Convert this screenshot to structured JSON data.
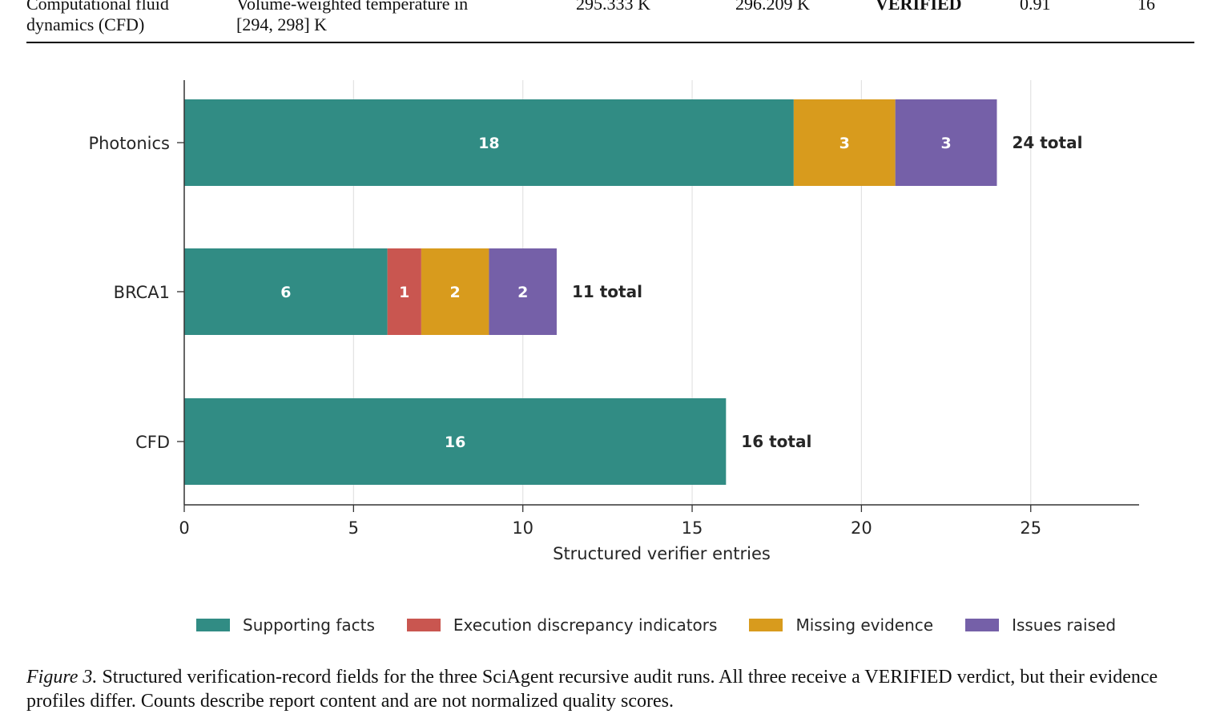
{
  "table_fragment": {
    "row": {
      "domain": [
        "Computational fluid",
        "dynamics (CFD)"
      ],
      "quantity": [
        "Volume-weighted temperature in",
        "[294, 298] K"
      ],
      "value_a": "295.333 K",
      "value_b": "296.209 K",
      "verdict": "VERIFIED",
      "score": "0.91",
      "count": "16"
    }
  },
  "chart_data": {
    "type": "bar",
    "orientation": "horizontal",
    "stacked": true,
    "categories": [
      "Photonics",
      "BRCA1",
      "CFD"
    ],
    "series": [
      {
        "name": "Supporting facts",
        "values": [
          18,
          6,
          16
        ],
        "color": "#318c84"
      },
      {
        "name": "Execution discrepancy indicators",
        "values": [
          0,
          1,
          0
        ],
        "color": "#c95650"
      },
      {
        "name": "Missing evidence",
        "values": [
          3,
          2,
          0
        ],
        "color": "#d89b1d"
      },
      {
        "name": "Issues raised",
        "values": [
          3,
          2,
          0
        ],
        "color": "#7560a8"
      }
    ],
    "totals": [
      "24 total",
      "11 total",
      "16 total"
    ],
    "xlabel": "Structured verifier entries",
    "xlim": [
      0,
      28.2
    ],
    "xticks": [
      0,
      5,
      10,
      15,
      20,
      25
    ],
    "grid": "vertical",
    "legend_position": "bottom"
  },
  "caption": {
    "label": "Figure 3.",
    "text": "Structured verification-record fields for the three SciAgent recursive audit runs. All three receive a VERIFIED verdict, but their evidence profiles differ. Counts describe report content and are not normalized quality scores."
  }
}
